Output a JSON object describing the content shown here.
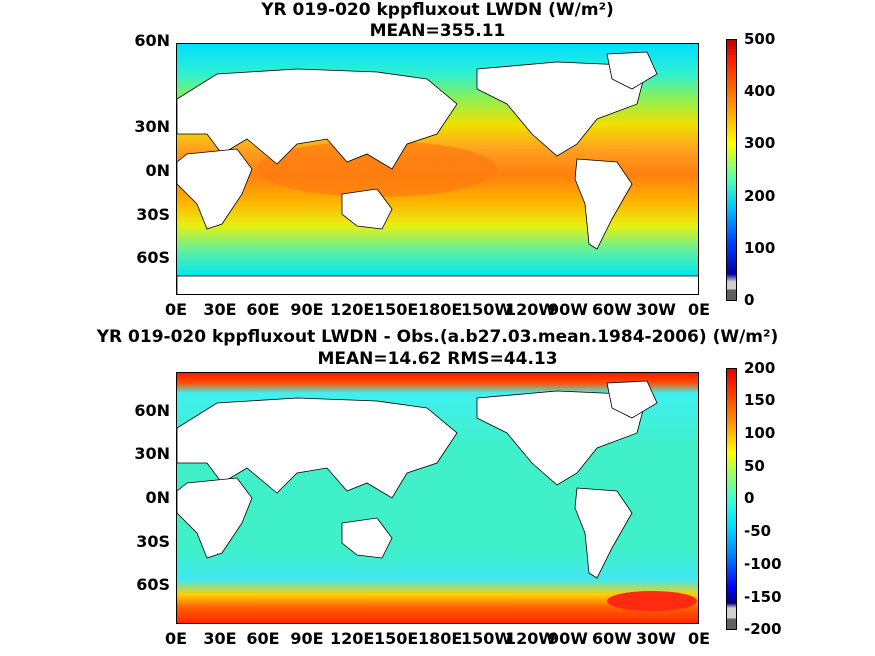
{
  "panels": [
    {
      "title": "YR 019-020 kppfluxout LWDN (W/m²)",
      "subtitle": "MEAN=355.11",
      "x_ticks": [
        "0E",
        "30E",
        "60E",
        "90E",
        "120E",
        "150E",
        "180E",
        "150W",
        "120W",
        "90W",
        "60W",
        "30W",
        "0E"
      ],
      "y_ticks": [
        "60N",
        "30N",
        "0N",
        "30S",
        "60S"
      ],
      "colorbar_ticks": [
        "500",
        "400",
        "300",
        "200",
        "100",
        "0"
      ],
      "color_range": [
        0,
        500
      ]
    },
    {
      "title": "YR 019-020 kppfluxout LWDN - Obs.(a.b27.03.mean.1984-2006) (W/m²)",
      "subtitle": "MEAN=14.62 RMS=44.13",
      "x_ticks": [
        "0E",
        "30E",
        "60E",
        "90E",
        "120E",
        "150E",
        "180E",
        "150W",
        "120W",
        "90W",
        "60W",
        "30W",
        "0E"
      ],
      "y_ticks": [
        "60N",
        "30N",
        "0N",
        "30S",
        "60S"
      ],
      "colorbar_ticks": [
        "200",
        "150",
        "100",
        "50",
        "0",
        "-50",
        "-100",
        "-150",
        "-200"
      ],
      "color_range": [
        -200,
        200
      ]
    }
  ],
  "colors": {
    "ocean_top": [
      "#00e0ff",
      "#40f0c0",
      "#b8f020",
      "#f8d800",
      "#ff9a20",
      "#ff7a10",
      "#f8b000",
      "#e8f010",
      "#60f0a0",
      "#00e8f0"
    ],
    "ocean_bottom": [
      "#ff1a00",
      "#60f0f0",
      "#40f0c8",
      "#40f0c8",
      "#60f0f0",
      "#ffb000",
      "#ff4000"
    ],
    "land": "#ffffff",
    "colormap": [
      "#800000",
      "#ff0000",
      "#ff8000",
      "#ffff00",
      "#80ff80",
      "#00ffff",
      "#0080ff",
      "#0000ff",
      "#000080"
    ],
    "undefined_gray": [
      "#cfcfcf",
      "#606060"
    ]
  }
}
